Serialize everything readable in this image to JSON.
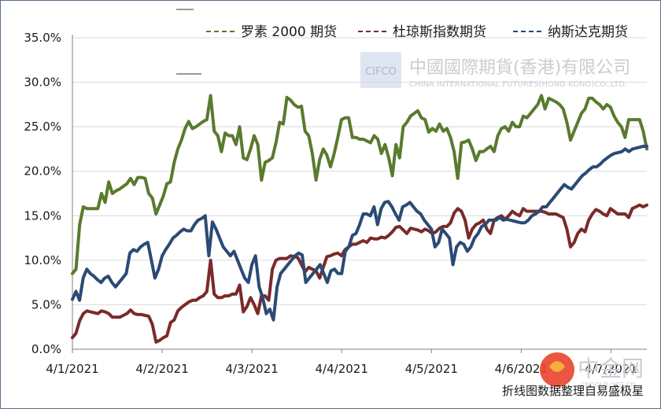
{
  "chart_data": {
    "type": "line",
    "title": "",
    "xlabel": "",
    "ylabel": "",
    "ylim": [
      0,
      0.35
    ],
    "yticks": [
      "0.0%",
      "5.0%",
      "10.0%",
      "15.0%",
      "20.0%",
      "25.0%",
      "30.0%",
      "35.0%"
    ],
    "xtick_labels": [
      "4/1/2021",
      "4/2/2021",
      "4/3/2021",
      "4/4/2021",
      "4/5/2021",
      "4/6/2021",
      "4/7/2021"
    ],
    "xlim": [
      0,
      165
    ],
    "grid": "horizontal",
    "legend": "top",
    "series": [
      {
        "name": "罗素 2000 期货",
        "color": "#5a7a2e",
        "values": [
          0.085,
          0.09,
          0.14,
          0.16,
          0.158,
          0.158,
          0.158,
          0.158,
          0.175,
          0.165,
          0.188,
          0.175,
          0.178,
          0.18,
          0.183,
          0.186,
          0.192,
          0.185,
          0.193,
          0.193,
          0.192,
          0.175,
          0.17,
          0.152,
          0.162,
          0.172,
          0.186,
          0.188,
          0.21,
          0.225,
          0.235,
          0.248,
          0.256,
          0.248,
          0.25,
          0.253,
          0.256,
          0.258,
          0.285,
          0.245,
          0.24,
          0.222,
          0.243,
          0.24,
          0.24,
          0.23,
          0.25,
          0.215,
          0.213,
          0.225,
          0.24,
          0.23,
          0.19,
          0.21,
          0.212,
          0.215,
          0.232,
          0.255,
          0.253,
          0.283,
          0.28,
          0.275,
          0.272,
          0.273,
          0.245,
          0.24,
          0.22,
          0.19,
          0.213,
          0.225,
          0.218,
          0.205,
          0.22,
          0.238,
          0.258,
          0.26,
          0.26,
          0.238,
          0.238,
          0.236,
          0.236,
          0.234,
          0.232,
          0.24,
          0.236,
          0.22,
          0.23,
          0.215,
          0.195,
          0.23,
          0.215,
          0.25,
          0.255,
          0.262,
          0.265,
          0.268,
          0.26,
          0.258,
          0.244,
          0.248,
          0.245,
          0.253,
          0.245,
          0.248,
          0.238,
          0.222,
          0.192,
          0.232,
          0.233,
          0.235,
          0.225,
          0.212,
          0.222,
          0.222,
          0.225,
          0.228,
          0.222,
          0.24,
          0.248,
          0.25,
          0.245,
          0.255,
          0.25,
          0.25,
          0.262,
          0.26,
          0.265,
          0.27,
          0.275,
          0.285,
          0.27,
          0.282,
          0.28,
          0.278,
          0.275,
          0.27,
          0.255,
          0.235,
          0.245,
          0.255,
          0.265,
          0.27,
          0.282,
          0.282,
          0.278,
          0.275,
          0.27,
          0.275,
          0.272,
          0.262,
          0.255,
          0.25,
          0.238,
          0.258,
          0.258,
          0.258,
          0.258,
          0.245,
          0.225
        ],
        "smooth": false
      },
      {
        "name": "杜琼斯指数期货",
        "color": "#7a2a2a",
        "values": [
          0.013,
          0.018,
          0.032,
          0.04,
          0.043,
          0.042,
          0.041,
          0.04,
          0.043,
          0.042,
          0.04,
          0.036,
          0.036,
          0.036,
          0.038,
          0.04,
          0.044,
          0.04,
          0.039,
          0.039,
          0.038,
          0.037,
          0.028,
          0.008,
          0.01,
          0.013,
          0.015,
          0.03,
          0.033,
          0.043,
          0.047,
          0.05,
          0.053,
          0.055,
          0.055,
          0.058,
          0.06,
          0.065,
          0.1,
          0.062,
          0.058,
          0.058,
          0.06,
          0.06,
          0.062,
          0.062,
          0.072,
          0.042,
          0.048,
          0.058,
          0.05,
          0.04,
          0.06,
          0.06,
          0.055,
          0.09,
          0.1,
          0.102,
          0.102,
          0.102,
          0.105,
          0.104,
          0.103,
          0.095,
          0.087,
          0.092,
          0.09,
          0.088,
          0.08,
          0.092,
          0.104,
          0.105,
          0.107,
          0.108,
          0.105,
          0.112,
          0.115,
          0.118,
          0.118,
          0.12,
          0.122,
          0.12,
          0.125,
          0.124,
          0.124,
          0.126,
          0.125,
          0.128,
          0.132,
          0.137,
          0.138,
          0.134,
          0.13,
          0.136,
          0.135,
          0.134,
          0.132,
          0.135,
          0.133,
          0.13,
          0.132,
          0.136,
          0.138,
          0.138,
          0.142,
          0.153,
          0.158,
          0.155,
          0.145,
          0.125,
          0.135,
          0.14,
          0.142,
          0.145,
          0.135,
          0.13,
          0.145,
          0.148,
          0.15,
          0.146,
          0.15,
          0.155,
          0.152,
          0.15,
          0.158,
          0.155,
          0.155,
          0.155,
          0.155,
          0.155,
          0.154,
          0.152,
          0.152,
          0.152,
          0.15,
          0.148,
          0.135,
          0.115,
          0.12,
          0.13,
          0.135,
          0.132,
          0.145,
          0.152,
          0.157,
          0.155,
          0.152,
          0.15,
          0.158,
          0.155,
          0.152,
          0.152,
          0.152,
          0.148,
          0.158,
          0.16,
          0.162,
          0.16,
          0.162
        ],
        "smooth": false
      },
      {
        "name": "纳斯达克期货",
        "color": "#2b4a75",
        "values": [
          0.056,
          0.065,
          0.055,
          0.08,
          0.09,
          0.085,
          0.082,
          0.078,
          0.075,
          0.08,
          0.082,
          0.075,
          0.07,
          0.075,
          0.08,
          0.085,
          0.108,
          0.112,
          0.11,
          0.115,
          0.118,
          0.12,
          0.1,
          0.08,
          0.09,
          0.105,
          0.112,
          0.118,
          0.125,
          0.128,
          0.132,
          0.135,
          0.133,
          0.133,
          0.14,
          0.145,
          0.147,
          0.15,
          0.105,
          0.143,
          0.135,
          0.125,
          0.115,
          0.11,
          0.105,
          0.11,
          0.1,
          0.09,
          0.08,
          0.075,
          0.095,
          0.105,
          0.07,
          0.058,
          0.04,
          0.045,
          0.033,
          0.07,
          0.085,
          0.09,
          0.095,
          0.1,
          0.105,
          0.108,
          0.106,
          0.075,
          0.08,
          0.085,
          0.09,
          0.095,
          0.085,
          0.075,
          0.088,
          0.09,
          0.085,
          0.085,
          0.11,
          0.115,
          0.128,
          0.13,
          0.14,
          0.152,
          0.152,
          0.15,
          0.16,
          0.14,
          0.158,
          0.165,
          0.166,
          0.16,
          0.152,
          0.145,
          0.16,
          0.162,
          0.165,
          0.16,
          0.155,
          0.152,
          0.145,
          0.14,
          0.135,
          0.115,
          0.12,
          0.135,
          0.13,
          0.125,
          0.095,
          0.115,
          0.12,
          0.118,
          0.11,
          0.115,
          0.125,
          0.13,
          0.138,
          0.14,
          0.145,
          0.145,
          0.145,
          0.148,
          0.145,
          0.146,
          0.145,
          0.144,
          0.143,
          0.142,
          0.142,
          0.145,
          0.15,
          0.152,
          0.155,
          0.16,
          0.16,
          0.165,
          0.17,
          0.175,
          0.18,
          0.185,
          0.182,
          0.18,
          0.185,
          0.19,
          0.195,
          0.198,
          0.202,
          0.205,
          0.205,
          0.208,
          0.212,
          0.215,
          0.218,
          0.22,
          0.221,
          0.222,
          0.225,
          0.222,
          0.225,
          0.226,
          0.227,
          0.228,
          0.228
        ],
        "smooth": false
      }
    ]
  },
  "watermark": {
    "logo_text": "CIFCO",
    "company_cn": "中國國際期貨(香港)有限公司",
    "company_en": "CHINA INTERNATIONAL FUTURES(HONG KONG)CO.,LTD.",
    "site_cn": "中金网",
    "site_url": "CNGOLD.ORG.CN"
  },
  "caption": "折线图数据整理自易盛极星"
}
